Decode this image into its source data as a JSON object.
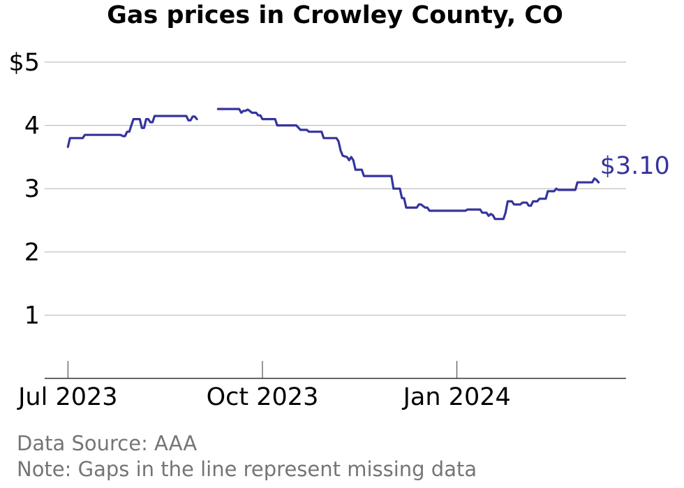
{
  "chart_data": {
    "type": "line",
    "title": "Gas prices in Crowley County, CO",
    "xlabel": "",
    "ylabel": "",
    "y_tick_labels": [
      "$5",
      "4",
      "3",
      "2",
      "1"
    ],
    "y_ticks": [
      5,
      4,
      3,
      2,
      1
    ],
    "ylim": [
      0,
      5.1
    ],
    "x_tick_labels": [
      "Jul 2023",
      "Oct 2023",
      "Jan 2024"
    ],
    "x_ticks": [
      "2023-07-01",
      "2023-10-01",
      "2024-01-01"
    ],
    "xlim": [
      "2023-06-20",
      "2024-03-21"
    ],
    "grid": "horizontal",
    "line_color": "#35349e",
    "last_value_label": "$3.10",
    "series": [
      {
        "segments": [
          [
            [
              "2023-07-01",
              3.66
            ],
            [
              "2023-07-02",
              3.8
            ],
            [
              "2023-07-08",
              3.8
            ],
            [
              "2023-07-09",
              3.85
            ],
            [
              "2023-07-26",
              3.85
            ],
            [
              "2023-07-27",
              3.83
            ],
            [
              "2023-07-28",
              3.83
            ],
            [
              "2023-07-29",
              3.9
            ],
            [
              "2023-07-30",
              3.9
            ],
            [
              "2023-07-31",
              4.0
            ],
            [
              "2023-08-01",
              4.1
            ],
            [
              "2023-08-04",
              4.1
            ],
            [
              "2023-08-05",
              3.96
            ],
            [
              "2023-08-06",
              3.96
            ],
            [
              "2023-08-07",
              4.1
            ],
            [
              "2023-08-08",
              4.1
            ],
            [
              "2023-08-09",
              4.05
            ],
            [
              "2023-08-10",
              4.05
            ],
            [
              "2023-08-11",
              4.15
            ],
            [
              "2023-08-26",
              4.15
            ],
            [
              "2023-08-27",
              4.08
            ],
            [
              "2023-08-28",
              4.08
            ],
            [
              "2023-08-29",
              4.14
            ],
            [
              "2023-08-30",
              4.14
            ],
            [
              "2023-08-31",
              4.1
            ]
          ],
          [
            [
              "2023-09-10",
              4.26
            ],
            [
              "2023-09-20",
              4.26
            ],
            [
              "2023-09-21",
              4.2
            ],
            [
              "2023-09-22",
              4.23
            ],
            [
              "2023-09-23",
              4.23
            ],
            [
              "2023-09-24",
              4.25
            ],
            [
              "2023-09-25",
              4.23
            ],
            [
              "2023-09-26",
              4.2
            ],
            [
              "2023-09-28",
              4.2
            ],
            [
              "2023-09-29",
              4.16
            ],
            [
              "2023-09-30",
              4.16
            ],
            [
              "2023-10-01",
              4.1
            ],
            [
              "2023-10-07",
              4.1
            ],
            [
              "2023-10-08",
              4.0
            ],
            [
              "2023-10-17",
              4.0
            ],
            [
              "2023-10-19",
              3.93
            ],
            [
              "2023-10-22",
              3.93
            ],
            [
              "2023-10-23",
              3.9
            ],
            [
              "2023-10-29",
              3.9
            ],
            [
              "2023-10-30",
              3.8
            ],
            [
              "2023-11-05",
              3.8
            ],
            [
              "2023-11-06",
              3.75
            ],
            [
              "2023-11-07",
              3.6
            ],
            [
              "2023-11-08",
              3.52
            ],
            [
              "2023-11-10",
              3.5
            ],
            [
              "2023-11-11",
              3.45
            ],
            [
              "2023-11-12",
              3.5
            ],
            [
              "2023-11-13",
              3.45
            ],
            [
              "2023-11-14",
              3.3
            ],
            [
              "2023-11-17",
              3.3
            ],
            [
              "2023-11-18",
              3.2
            ],
            [
              "2023-12-01",
              3.2
            ],
            [
              "2023-12-02",
              3.0
            ],
            [
              "2023-12-05",
              3.0
            ],
            [
              "2023-12-06",
              2.85
            ],
            [
              "2023-12-07",
              2.85
            ],
            [
              "2023-12-08",
              2.7
            ],
            [
              "2023-12-13",
              2.7
            ],
            [
              "2023-12-14",
              2.75
            ],
            [
              "2023-12-15",
              2.75
            ],
            [
              "2023-12-17",
              2.7
            ],
            [
              "2023-12-18",
              2.7
            ],
            [
              "2023-12-19",
              2.65
            ],
            [
              "2024-01-05",
              2.65
            ],
            [
              "2024-01-06",
              2.67
            ],
            [
              "2024-01-12",
              2.67
            ],
            [
              "2024-01-13",
              2.62
            ],
            [
              "2024-01-15",
              2.62
            ],
            [
              "2024-01-16",
              2.57
            ],
            [
              "2024-01-17",
              2.6
            ],
            [
              "2024-01-18",
              2.58
            ],
            [
              "2024-01-19",
              2.52
            ],
            [
              "2024-01-23",
              2.52
            ],
            [
              "2024-01-24",
              2.62
            ],
            [
              "2024-01-25",
              2.8
            ],
            [
              "2024-01-27",
              2.8
            ],
            [
              "2024-01-28",
              2.75
            ],
            [
              "2024-01-31",
              2.75
            ],
            [
              "2024-02-01",
              2.78
            ],
            [
              "2024-02-03",
              2.78
            ],
            [
              "2024-02-04",
              2.73
            ],
            [
              "2024-02-05",
              2.73
            ],
            [
              "2024-02-06",
              2.8
            ],
            [
              "2024-02-08",
              2.8
            ],
            [
              "2024-02-09",
              2.84
            ],
            [
              "2024-02-12",
              2.84
            ],
            [
              "2024-02-13",
              2.96
            ],
            [
              "2024-02-16",
              2.96
            ],
            [
              "2024-02-17",
              3.0
            ],
            [
              "2024-02-18",
              2.98
            ],
            [
              "2024-02-26",
              2.98
            ],
            [
              "2024-02-27",
              3.1
            ],
            [
              "2024-03-05",
              3.1
            ],
            [
              "2024-03-06",
              3.16
            ],
            [
              "2024-03-07",
              3.14
            ],
            [
              "2024-03-08",
              3.1
            ]
          ]
        ]
      }
    ]
  },
  "footer": {
    "source": "Data Source: AAA",
    "note": "Note: Gaps in the line represent missing data"
  }
}
